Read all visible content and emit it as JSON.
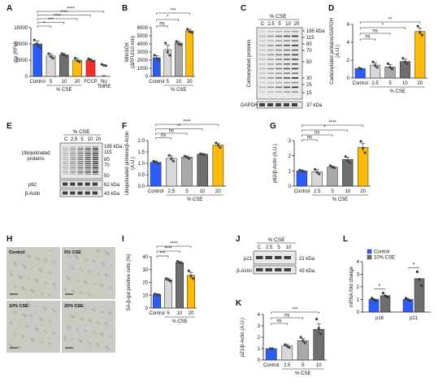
{
  "colors": {
    "blue": "#2a5cff",
    "lgray": "#d8d8d8",
    "mgray": "#a8a8a8",
    "dgray": "#6e6e6e",
    "yellow": "#ffbb00",
    "red": "#ff2a2a",
    "white": "#ffffff",
    "dot": "#555555"
  },
  "panels": {
    "A": {
      "letter": "A",
      "ylabel": "Δψ (RFU)",
      "yticks": [
        "0",
        "5000",
        "10000",
        "15000"
      ],
      "ymax": 15000,
      "bars": [
        {
          "x": "Control",
          "v": 10000,
          "c": "blue",
          "pts": [
            11200,
            10000,
            9300,
            8700
          ]
        },
        {
          "x": "5",
          "v": 6300,
          "c": "lgray",
          "pts": [
            7000,
            6100,
            5600
          ]
        },
        {
          "x": "10",
          "v": 6600,
          "c": "dgray",
          "pts": [
            7000,
            6600,
            6200
          ]
        },
        {
          "x": "20",
          "v": 5000,
          "c": "yellow",
          "pts": [
            5600,
            4800,
            4500
          ]
        },
        {
          "x": "FCCP",
          "v": 5000,
          "c": "red",
          "pts": [
            5400,
            5000,
            4600
          ]
        },
        {
          "x": "No TMRE",
          "v": 0,
          "c": "white",
          "pts": [
            3700,
            3400,
            3300
          ]
        }
      ],
      "sig": [
        "*",
        "***",
        "****",
        "****",
        "****"
      ],
      "group": "% CSE"
    },
    "B": {
      "letter": "B",
      "ylabel": "MitoSOX (ΔRFU/10 min)",
      "yticks": [
        "0",
        "1000",
        "2000",
        "3000",
        "4000",
        "5000",
        "6000"
      ],
      "ymax": 6000,
      "bars": [
        {
          "x": "Control",
          "v": 2300,
          "c": "blue",
          "pts": [
            2600,
            2200,
            2000
          ]
        },
        {
          "x": "5",
          "v": 3300,
          "c": "lgray",
          "pts": [
            4100,
            3000,
            2600
          ]
        },
        {
          "x": "10",
          "v": 4100,
          "c": "mgray",
          "pts": [
            4300,
            4000,
            3900
          ]
        },
        {
          "x": "20",
          "v": 5600,
          "c": "yellow",
          "pts": [
            5800,
            5500,
            5400
          ]
        }
      ],
      "sig": [
        "ns",
        "*",
        "***"
      ],
      "group": "% CSE"
    },
    "C": {
      "letter": "C",
      "header": "% CSE",
      "lanes": [
        "C",
        "2.5",
        "5",
        "10",
        "20"
      ],
      "mw": [
        "185 kDa",
        "115",
        "80",
        "70",
        "50",
        "30",
        "25",
        "15"
      ],
      "rowlabel": "Carbonylated proteins",
      "gapdh": "GAPDH",
      "gapdhmw": "37 kDa"
    },
    "D": {
      "letter": "D",
      "ylabel": "Carbonylated proteins/GAPDH (A.U.)",
      "yticks": [
        "0",
        "2",
        "4",
        "6"
      ],
      "ymax": 6,
      "bars": [
        {
          "x": "Control",
          "v": 1.05,
          "c": "blue",
          "pts": [
            1.1,
            1.0
          ]
        },
        {
          "x": "2.5",
          "v": 1.45,
          "c": "lgray",
          "pts": [
            1.8,
            1.4,
            1.2
          ]
        },
        {
          "x": "5",
          "v": 1.25,
          "c": "mgray",
          "pts": [
            1.6,
            1.2,
            1.0
          ]
        },
        {
          "x": "10",
          "v": 1.85,
          "c": "dgray",
          "pts": [
            2.2,
            1.8,
            1.6
          ]
        },
        {
          "x": "20",
          "v": 5.2,
          "c": "yellow",
          "pts": [
            5.8,
            5.1,
            4.8
          ]
        }
      ],
      "sig": [
        "ns",
        "ns",
        "*",
        "**"
      ],
      "group": "% CSE"
    },
    "E": {
      "letter": "E",
      "header": "% CSE",
      "lanes": [
        "C",
        "2.5",
        "5",
        "10",
        "20"
      ],
      "mw": [
        "185 kDa",
        "115",
        "80",
        "70",
        "50"
      ],
      "rowlabel": "Ubiquitinated proteins",
      "p62": "p62",
      "p62mw": "62 kDa",
      "actin": "β-Actin",
      "actinmw": "43 kDa"
    },
    "F": {
      "letter": "F",
      "ylabel": "Ubiquitinated proteins/β-Actin (A.U.)",
      "yticks": [
        "0.0",
        "0.5",
        "1.0",
        "1.5",
        "2.0"
      ],
      "ymax": 2.0,
      "bars": [
        {
          "x": "Control",
          "v": 1.05,
          "c": "blue",
          "pts": [
            1.1,
            1.05,
            1.0
          ]
        },
        {
          "x": "2.5",
          "v": 1.22,
          "c": "lgray",
          "pts": [
            1.35,
            1.2,
            1.1
          ]
        },
        {
          "x": "5",
          "v": 1.27,
          "c": "mgray",
          "pts": [
            1.32,
            1.27,
            1.22
          ]
        },
        {
          "x": "10",
          "v": 1.4,
          "c": "dgray",
          "pts": [
            1.42,
            1.4,
            1.38
          ]
        },
        {
          "x": "20",
          "v": 1.8,
          "c": "yellow",
          "pts": [
            1.9,
            1.8,
            1.7
          ]
        }
      ],
      "sig": [
        "ns",
        "ns",
        "**",
        "****"
      ],
      "group": "% CSE"
    },
    "G": {
      "letter": "G",
      "ylabel": "p62/β-Actin (A.U.)",
      "yticks": [
        "0",
        "1",
        "2",
        "3"
      ],
      "ymax": 3,
      "bars": [
        {
          "x": "Control",
          "v": 1.0,
          "c": "blue",
          "pts": [
            1.05,
            1.0,
            0.95
          ]
        },
        {
          "x": "2.5",
          "v": 0.95,
          "c": "lgray",
          "pts": [
            1.1,
            0.9,
            0.8
          ]
        },
        {
          "x": "5",
          "v": 1.25,
          "c": "mgray",
          "pts": [
            1.35,
            1.25,
            1.2
          ]
        },
        {
          "x": "10",
          "v": 1.75,
          "c": "dgray",
          "pts": [
            1.95,
            1.7,
            1.55
          ]
        },
        {
          "x": "20",
          "v": 2.55,
          "c": "yellow",
          "pts": [
            2.95,
            2.5,
            2.2
          ]
        }
      ],
      "sig": [
        "ns",
        "ns",
        "*",
        "****"
      ],
      "group": "% CSE"
    },
    "H": {
      "letter": "H",
      "images": [
        "Control",
        "5% CSE",
        "10% CSE",
        "20% CSE"
      ]
    },
    "I": {
      "letter": "I",
      "ylabel": "SA-β-gal positive cells (%)",
      "yticks": [
        "0",
        "10",
        "20",
        "30",
        "40"
      ],
      "ymax": 40,
      "bars": [
        {
          "x": "Control",
          "v": 10.5,
          "c": "blue",
          "pts": [
            11,
            10.5,
            10
          ]
        },
        {
          "x": "5",
          "v": 22,
          "c": "lgray",
          "pts": [
            23,
            22,
            21
          ]
        },
        {
          "x": "10",
          "v": 35.5,
          "c": "dgray",
          "pts": [
            36.5,
            35.5,
            35
          ]
        },
        {
          "x": "20",
          "v": 25.5,
          "c": "yellow",
          "pts": [
            29,
            25,
            23
          ]
        }
      ],
      "sig": [
        "***",
        "****",
        "****"
      ],
      "group": "% CSE"
    },
    "J": {
      "letter": "J",
      "header": "% CSE",
      "lanes": [
        "C",
        "2.5",
        "5",
        "10"
      ],
      "p21": "p21",
      "p21mw": "21 kDa",
      "actin": "β-Actin",
      "actinmw": "43 kDa"
    },
    "K": {
      "letter": "K",
      "ylabel": "p21/β-Actin (A.U.)",
      "yticks": [
        "0",
        "1",
        "2",
        "3",
        "4"
      ],
      "ymax": 4,
      "bars": [
        {
          "x": "Control",
          "v": 1.0,
          "c": "blue",
          "pts": [
            1.0,
            1.0
          ]
        },
        {
          "x": "2.5",
          "v": 1.25,
          "c": "lgray",
          "pts": [
            1.35,
            1.2,
            1.1
          ]
        },
        {
          "x": "5",
          "v": 1.7,
          "c": "mgray",
          "pts": [
            2.0,
            1.7,
            1.5
          ]
        },
        {
          "x": "10",
          "v": 2.7,
          "c": "dgray",
          "pts": [
            3.6,
            2.8,
            2.3
          ]
        }
      ],
      "sig": [
        "ns",
        "ns",
        "***"
      ],
      "group": "% CSE"
    },
    "L": {
      "letter": "L",
      "ylabel": "mRNA fold change",
      "yticks": [
        "0",
        "1",
        "2",
        "3",
        "4"
      ],
      "ymax": 4,
      "legend": [
        "Control",
        "10% CSE"
      ],
      "groups": [
        {
          "x": "p16",
          "c": 1.0,
          "t": 1.3,
          "cp": [
            1.1,
            1.0,
            0.9
          ],
          "tp": [
            1.5,
            1.3,
            1.2
          ],
          "sig": "*"
        },
        {
          "x": "p21",
          "c": 1.0,
          "t": 2.65,
          "cp": [
            1.1,
            1.0,
            0.9
          ],
          "tp": [
            3.2,
            2.6,
            2.1
          ],
          "sig": "*"
        }
      ]
    }
  }
}
